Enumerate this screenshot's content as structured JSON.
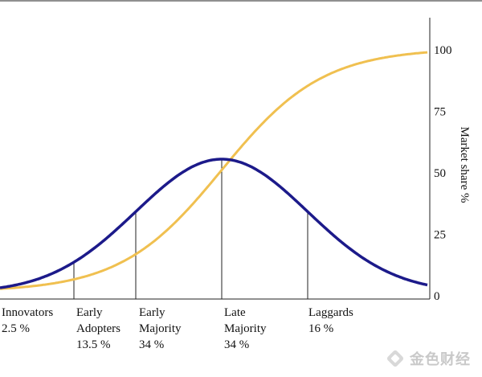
{
  "chart_data": {
    "type": "line",
    "title": "",
    "ylabel": "Market share %",
    "ylim": [
      0,
      100
    ],
    "yticks": [
      0,
      25,
      50,
      75,
      100
    ],
    "grid": false,
    "segments": [
      {
        "name": "Innovators",
        "value": "2.5 %"
      },
      {
        "name": "Early Adopters",
        "value": "13.5 %"
      },
      {
        "name": "Early Majority",
        "value": "34 %"
      },
      {
        "name": "Late Majority",
        "value": "34 %"
      },
      {
        "name": "Laggards",
        "value": "16 %"
      }
    ],
    "segment_label_lines": [
      [
        "Innovators",
        "2.5 %"
      ],
      [
        "Early",
        "Adopters",
        "13.5 %"
      ],
      [
        "Early",
        "Majority",
        "34 %"
      ],
      [
        "Late",
        "Majority",
        "34 %"
      ],
      [
        "Laggards",
        "16 %"
      ]
    ],
    "series": [
      {
        "curve": "adoption-bell",
        "color": "#1c1a8a"
      },
      {
        "curve": "cumulative-s",
        "color": "#f0c050"
      }
    ]
  },
  "watermark": {
    "text": "金色财经",
    "logo": "gold-diamond-logo"
  }
}
